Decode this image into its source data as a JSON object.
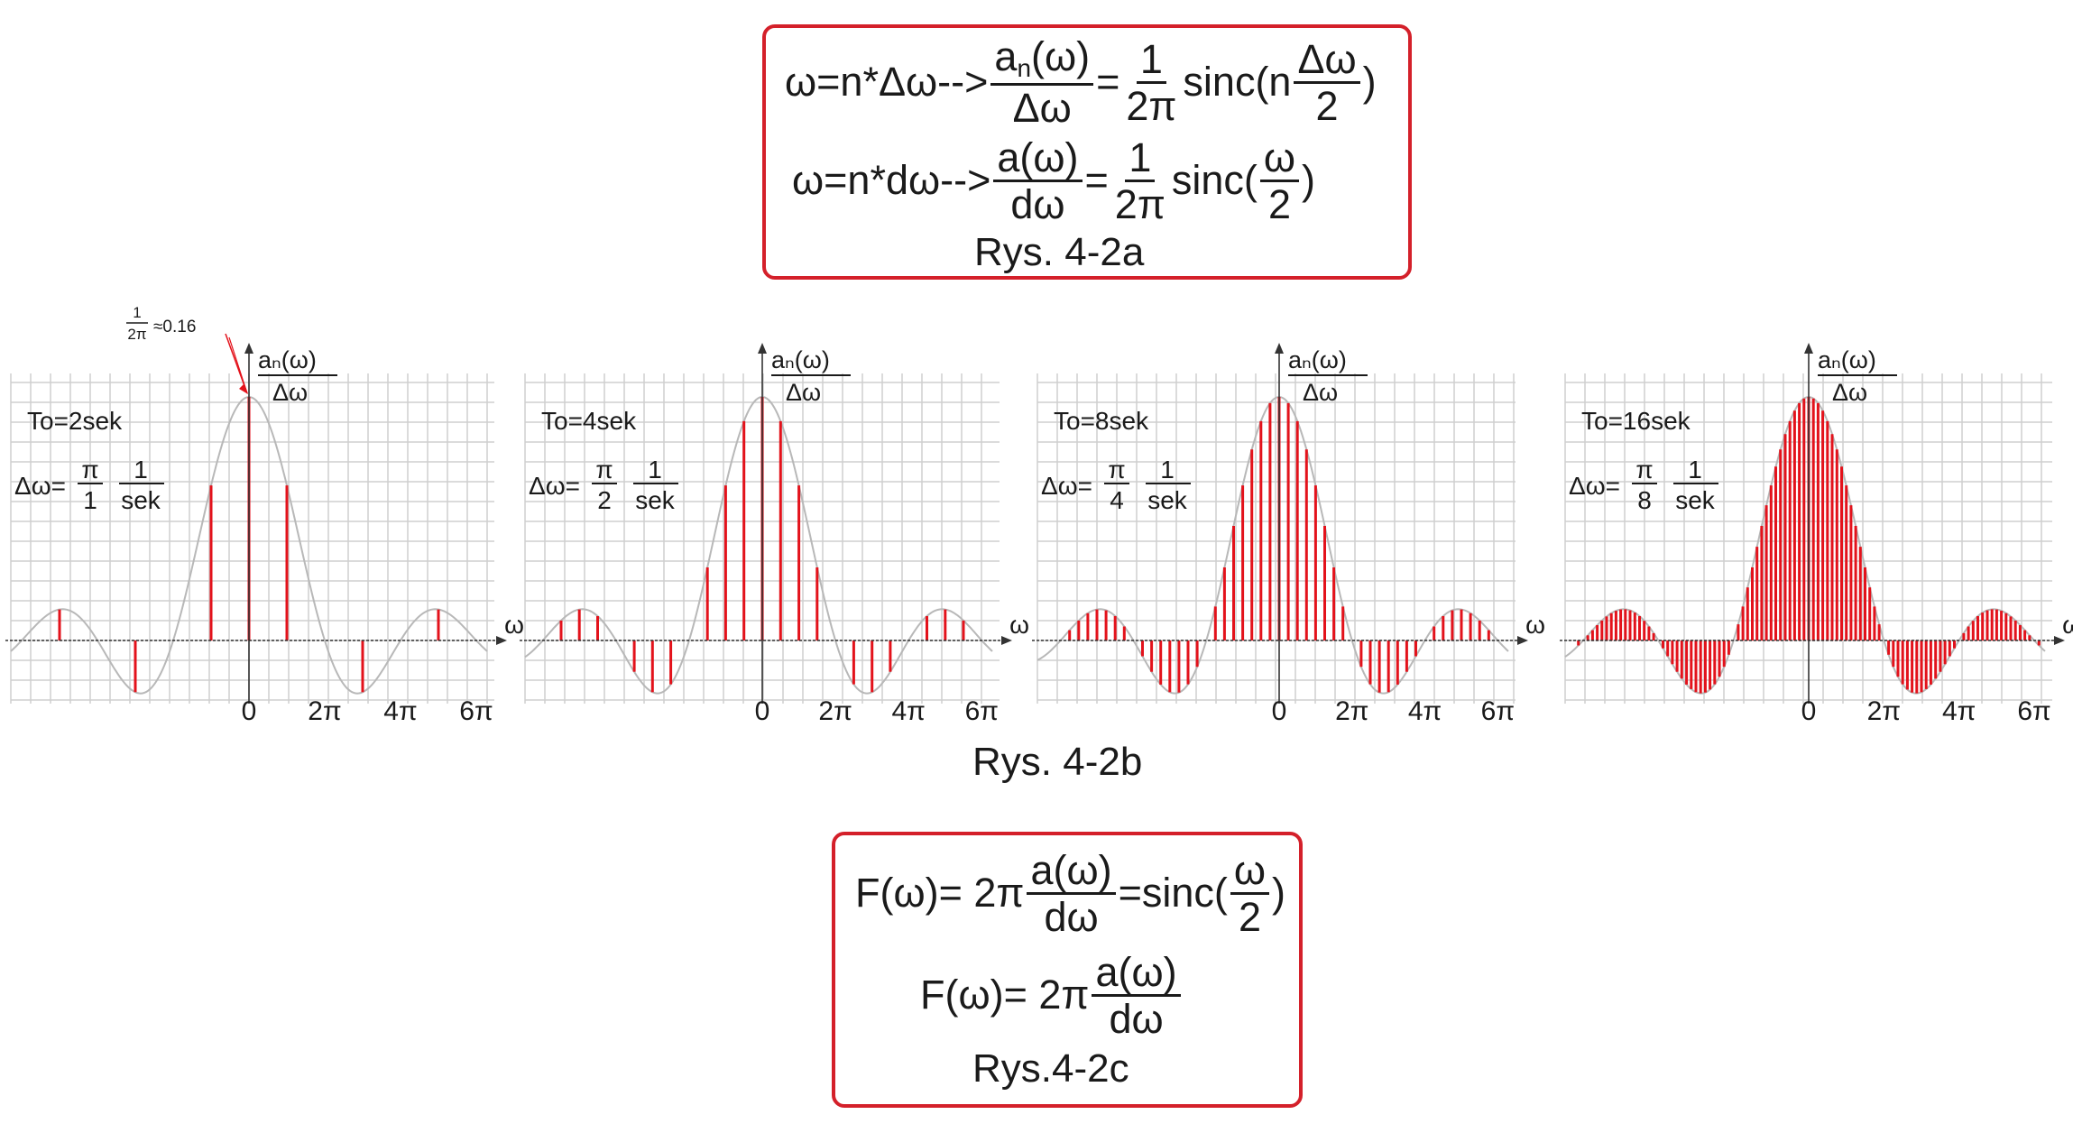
{
  "top_box": {
    "line1_lhs": "ω=n*Δω-->",
    "line1_num_base": "a",
    "line1_num_sub": "n",
    "line1_num_rest": "(ω)",
    "line1_den": "Δω",
    "line1_eq": "=",
    "line1_coef_num": "1",
    "line1_coef_den": "2π",
    "line1_fn": "sinc(n",
    "line1_arg_num": "Δω",
    "line1_arg_den": "2",
    "line1_close": ")",
    "line2_lhs": "ω=n*dω-->",
    "line2_num": "a(ω)",
    "line2_den": "dω",
    "line2_eq": "=",
    "line2_coef_num": "1",
    "line2_coef_den": "2π",
    "line2_fn": "sinc(",
    "line2_arg_num": "ω",
    "line2_arg_den": "2",
    "line2_close": ")",
    "caption": "Rys. 4-2a"
  },
  "middle_caption": "Rys. 4-2b",
  "bottom_box": {
    "line1_lhs": "F(ω)= 2π",
    "line1_num": "a(ω)",
    "line1_den": "dω",
    "line1_eq": "=sinc(",
    "line1_arg_num": "ω",
    "line1_arg_den": "2",
    "line1_close": ")",
    "line2_lhs": "F(ω)= 2π",
    "line2_num": "a(ω)",
    "line2_den": "dω",
    "caption": "Rys.4-2c"
  },
  "peak_annotation": {
    "num": "1",
    "den": "2π",
    "text": "≈0.16"
  },
  "colors": {
    "stem": "#e3121b",
    "envelope": "#b8b8b8",
    "grid": "#cfcfcf",
    "axis": "#333333",
    "box_border": "#d4202a"
  },
  "chart_data": [
    {
      "type": "stem",
      "envelope": "sinc(ω/2)/(2π)",
      "title": "To=2sek",
      "step": {
        "prefix": "Δω=",
        "num": "π",
        "den": "1",
        "unit_num": "1",
        "unit_den": "sek"
      },
      "ylabel_num": "aₙ(ω)",
      "ylabel_den": "Δω",
      "xlabel": "ω",
      "x_ticks": [
        "0",
        "2π",
        "4π",
        "6π"
      ],
      "x_tick_values": [
        0,
        6.2832,
        12.5664,
        18.8496
      ],
      "xlim": [
        -19.6,
        19.6
      ],
      "ylim": [
        -0.07,
        0.2
      ],
      "peak_value": 0.16,
      "spacing": 3.1416
    },
    {
      "type": "stem",
      "envelope": "sinc(ω/2)/(2π)",
      "title": "To=4sek",
      "step": {
        "prefix": "Δω=",
        "num": "π",
        "den": "2",
        "unit_num": "1",
        "unit_den": "sek"
      },
      "ylabel_num": "aₙ(ω)",
      "ylabel_den": "Δω",
      "xlabel": "ω",
      "x_ticks": [
        "0",
        "2π",
        "4π",
        "6π"
      ],
      "x_tick_values": [
        0,
        6.2832,
        12.5664,
        18.8496
      ],
      "xlim": [
        -19.6,
        19.6
      ],
      "ylim": [
        -0.07,
        0.2
      ],
      "peak_value": 0.16,
      "spacing": 1.5708
    },
    {
      "type": "stem",
      "envelope": "sinc(ω/2)/(2π)",
      "title": "To=8sek",
      "step": {
        "prefix": "Δω=",
        "num": "π",
        "den": "4",
        "unit_num": "1",
        "unit_den": "sek"
      },
      "ylabel_num": "aₙ(ω)",
      "ylabel_den": "Δω",
      "xlabel": "ω",
      "x_ticks": [
        "0",
        "2π",
        "4π",
        "6π"
      ],
      "x_tick_values": [
        0,
        6.2832,
        12.5664,
        18.8496
      ],
      "xlim": [
        -19.6,
        19.6
      ],
      "ylim": [
        -0.07,
        0.2
      ],
      "peak_value": 0.16,
      "spacing": 0.7854
    },
    {
      "type": "stem",
      "envelope": "sinc(ω/2)/(2π)",
      "title": "To=16sek",
      "step": {
        "prefix": "Δω=",
        "num": "π",
        "den": "8",
        "unit_num": "1",
        "unit_den": "sek"
      },
      "ylabel_num": "aₙ(ω)",
      "ylabel_den": "Δω",
      "xlabel": "ω",
      "x_ticks": [
        "0",
        "2π",
        "4π",
        "6π"
      ],
      "x_tick_values": [
        0,
        6.2832,
        12.5664,
        18.8496
      ],
      "xlim": [
        -19.6,
        19.6
      ],
      "ylim": [
        -0.07,
        0.2
      ],
      "peak_value": 0.16,
      "spacing": 0.3927
    }
  ]
}
